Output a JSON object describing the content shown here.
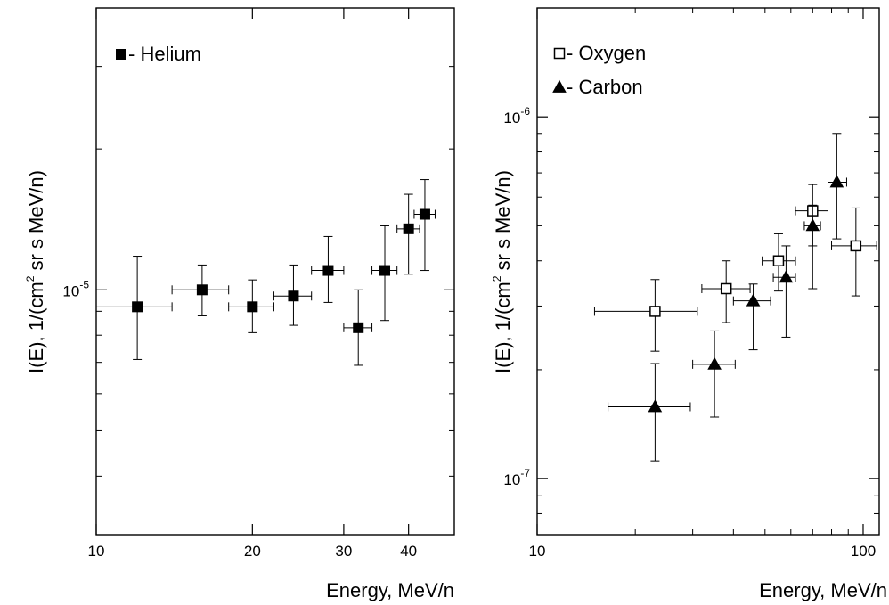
{
  "chart_data": [
    {
      "type": "scatter",
      "xlabel": "Energy, MeV/n",
      "ylabel": "I(E), 1/(cm^2 sr s MeV/n)",
      "ylabel_parts": {
        "pre": "I(E), 1/(cm",
        "sup": "2",
        "post": " sr s MeV/n)"
      },
      "x_scale": "log",
      "y_scale": "log",
      "xlim": [
        10,
        49
      ],
      "ylim": [
        3e-06,
        4e-05
      ],
      "x_ticks": [
        {
          "value": 10,
          "label": "10"
        },
        {
          "value": 20,
          "label": "20"
        },
        {
          "value": 30,
          "label": "30"
        },
        {
          "value": 40,
          "label": "40"
        }
      ],
      "y_ticks": [
        {
          "value": 1e-05,
          "base": "10",
          "exp": "-5"
        }
      ],
      "legend_position": "top-left",
      "series": [
        {
          "name": "- Helium",
          "marker": "filled-square",
          "points": [
            {
              "x": 12,
              "y": 9.2e-06,
              "xerr": [
                10,
                14
              ],
              "yerr": [
                7.1e-06,
                1.18e-05
              ]
            },
            {
              "x": 16,
              "y": 1e-05,
              "xerr": [
                14,
                18
              ],
              "yerr": [
                8.8e-06,
                1.13e-05
              ]
            },
            {
              "x": 20,
              "y": 9.2e-06,
              "xerr": [
                18,
                22
              ],
              "yerr": [
                8.1e-06,
                1.05e-05
              ]
            },
            {
              "x": 24,
              "y": 9.7e-06,
              "xerr": [
                22,
                26
              ],
              "yerr": [
                8.4e-06,
                1.13e-05
              ]
            },
            {
              "x": 28,
              "y": 1.1e-05,
              "xerr": [
                26,
                30
              ],
              "yerr": [
                9.4e-06,
                1.3e-05
              ]
            },
            {
              "x": 32,
              "y": 8.3e-06,
              "xerr": [
                30,
                34
              ],
              "yerr": [
                6.9e-06,
                1e-05
              ]
            },
            {
              "x": 36,
              "y": 1.1e-05,
              "xerr": [
                34,
                38
              ],
              "yerr": [
                8.6e-06,
                1.37e-05
              ]
            },
            {
              "x": 40,
              "y": 1.35e-05,
              "xerr": [
                38,
                42
              ],
              "yerr": [
                1.08e-05,
                1.6e-05
              ]
            },
            {
              "x": 43,
              "y": 1.45e-05,
              "xerr": [
                41,
                45
              ],
              "yerr": [
                1.1e-05,
                1.72e-05
              ]
            }
          ]
        }
      ]
    },
    {
      "type": "scatter",
      "xlabel": "Energy, MeV/n",
      "ylabel": "I(E), 1/(cm^2 sr s MeV/n)",
      "ylabel_parts": {
        "pre": "I(E), 1/(cm",
        "sup": "2",
        "post": " sr s MeV/n)"
      },
      "x_scale": "log",
      "y_scale": "log",
      "xlim": [
        10,
        112
      ],
      "ylim": [
        7e-08,
        2e-06
      ],
      "x_ticks": [
        {
          "value": 10,
          "label": "10"
        },
        {
          "value": 100,
          "label": "100"
        }
      ],
      "y_ticks": [
        {
          "value": 1e-06,
          "base": "10",
          "exp": "-6"
        },
        {
          "value": 1e-07,
          "base": "10",
          "exp": "-7"
        }
      ],
      "legend_position": "top-left",
      "series": [
        {
          "name": "- Oxygen",
          "marker": "open-square",
          "points": [
            {
              "x": 23,
              "y": 2.9e-07,
              "xerr": [
                15,
                31
              ],
              "yerr": [
                2.25e-07,
                3.55e-07
              ]
            },
            {
              "x": 38,
              "y": 3.35e-07,
              "xerr": [
                32,
                45
              ],
              "yerr": [
                2.7e-07,
                4e-07
              ]
            },
            {
              "x": 55,
              "y": 4e-07,
              "xerr": [
                49,
                62
              ],
              "yerr": [
                3.3e-07,
                4.75e-07
              ]
            },
            {
              "x": 70,
              "y": 5.5e-07,
              "xerr": [
                62,
                78
              ],
              "yerr": [
                4.4e-07,
                6.5e-07
              ]
            },
            {
              "x": 95,
              "y": 4.4e-07,
              "xerr": [
                80,
                110
              ],
              "yerr": [
                3.2e-07,
                5.6e-07
              ]
            }
          ]
        },
        {
          "name": "- Carbon",
          "marker": "filled-triangle",
          "points": [
            {
              "x": 23,
              "y": 1.58e-07,
              "xerr": [
                16.5,
                29.5
              ],
              "yerr": [
                1.12e-07,
                2.08e-07
              ]
            },
            {
              "x": 35,
              "y": 2.07e-07,
              "xerr": [
                30,
                40.5
              ],
              "yerr": [
                1.48e-07,
                2.56e-07
              ]
            },
            {
              "x": 46,
              "y": 3.1e-07,
              "xerr": [
                40,
                52
              ],
              "yerr": [
                2.27e-07,
                3.45e-07
              ]
            },
            {
              "x": 58,
              "y": 3.6e-07,
              "xerr": [
                53,
                62
              ],
              "yerr": [
                2.46e-07,
                4.4e-07
              ]
            },
            {
              "x": 70,
              "y": 5e-07,
              "xerr": [
                66,
                74
              ],
              "yerr": [
                3.35e-07,
                5.7e-07
              ]
            },
            {
              "x": 83,
              "y": 6.6e-07,
              "xerr": [
                78,
                89
              ],
              "yerr": [
                4.6e-07,
                9e-07
              ]
            }
          ]
        }
      ]
    }
  ]
}
